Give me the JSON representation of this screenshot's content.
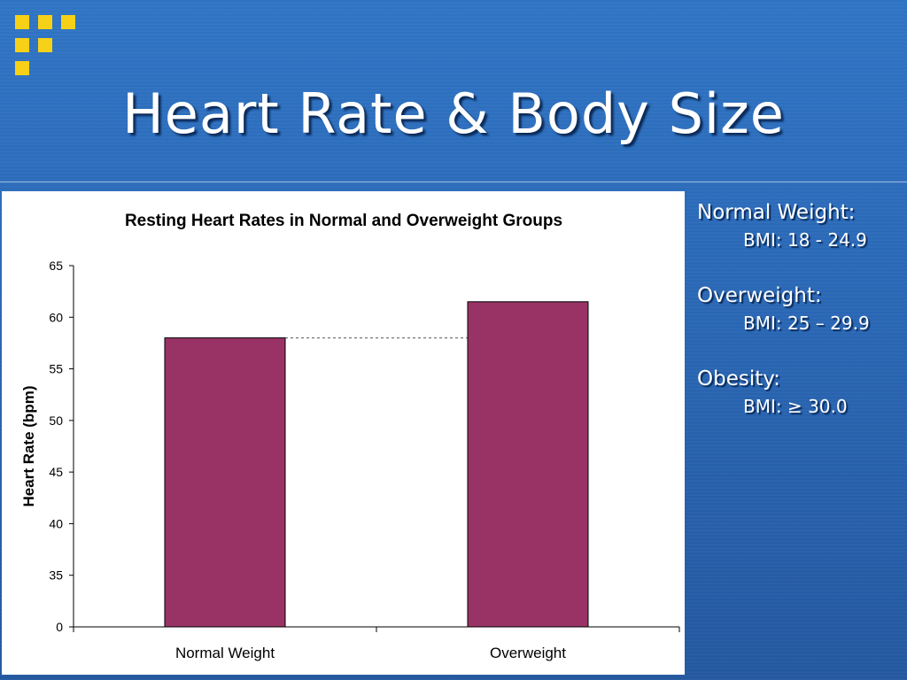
{
  "slide": {
    "title": "Heart Rate & Body Size",
    "accent_color": "#f7d117",
    "logo_icon": "yellow-squares-logo"
  },
  "sidebar": {
    "items": [
      {
        "label": "Normal Weight:",
        "bmi": "BMI: 18 - 24.9"
      },
      {
        "label": "Overweight:",
        "bmi": "BMI: 25 – 29.9"
      },
      {
        "label": "Obesity:",
        "bmi": "BMI: ≥ 30.0"
      }
    ]
  },
  "chart_data": {
    "type": "bar",
    "title": "Resting Heart Rates in Normal and Overweight Groups",
    "xlabel": "",
    "ylabel": "Heart Rate (bpm)",
    "categories": [
      "Normal Weight",
      "Overweight"
    ],
    "values": [
      58,
      61.5
    ],
    "yticks": [
      0,
      35,
      40,
      45,
      50,
      55,
      60,
      65
    ],
    "ylim": [
      0,
      65
    ],
    "axis_break": "between 0 and 35",
    "reference_line": {
      "value": 58,
      "style": "dotted"
    },
    "bar_color": "#993366",
    "grid": false,
    "legend": "none"
  }
}
